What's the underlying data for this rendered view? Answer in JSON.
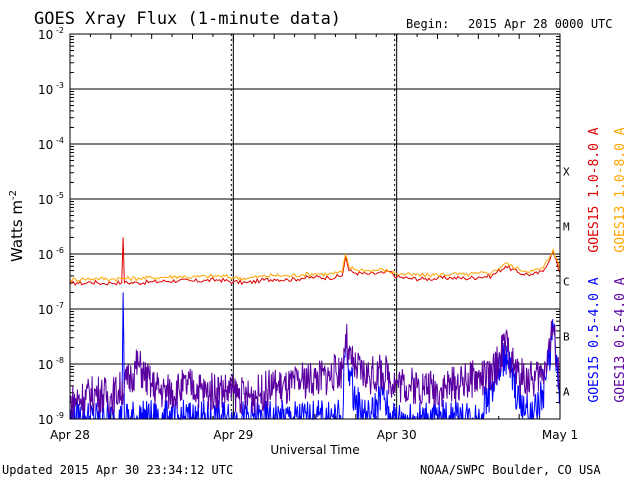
{
  "header": {
    "title": "GOES Xray Flux (1-minute data)",
    "begin_label": "Begin:",
    "begin_value": "2015 Apr 28 0000 UTC"
  },
  "footer": {
    "updated": "Updated 2015 Apr 30 23:34:12 UTC",
    "credit": "NOAA/SWPC Boulder, CO USA"
  },
  "chart_data": {
    "type": "line",
    "title": "GOES Xray Flux (1-minute data)",
    "xlabel": "Universal Time",
    "ylabel_text": "Watts m",
    "ylabel_exp": "-2",
    "yscale": "log",
    "ylim": [
      1e-09,
      0.01
    ],
    "xlim": [
      0,
      72
    ],
    "x_unit": "hours since 2015 Apr 28 0000 UTC",
    "x_ticks": [
      {
        "x": 0,
        "label": "Apr 28"
      },
      {
        "x": 24,
        "label": "Apr 29"
      },
      {
        "x": 48,
        "label": "Apr 30"
      },
      {
        "x": 72,
        "label": "May 1"
      }
    ],
    "y_ticks": [
      {
        "exp": -2,
        "label": "10",
        "sup": "-2"
      },
      {
        "exp": -3,
        "label": "10",
        "sup": "-3"
      },
      {
        "exp": -4,
        "label": "10",
        "sup": "-4"
      },
      {
        "exp": -5,
        "label": "10",
        "sup": "-5"
      },
      {
        "exp": -6,
        "label": "10",
        "sup": "-6"
      },
      {
        "exp": -7,
        "label": "10",
        "sup": "-7"
      },
      {
        "exp": -8,
        "label": "10",
        "sup": "-8"
      },
      {
        "exp": -9,
        "label": "10",
        "sup": "-9"
      }
    ],
    "flare_classes": [
      {
        "label": "X",
        "exp": -4
      },
      {
        "label": "M",
        "exp": -5
      },
      {
        "label": "C",
        "exp": -6
      },
      {
        "label": "B",
        "exp": -7
      },
      {
        "label": "A",
        "exp": -8
      }
    ],
    "grid": true,
    "legend_position": "right",
    "series": [
      {
        "name": "GOES15 1.0-8.0 A",
        "color": "#e00000",
        "x": [
          0,
          1,
          2,
          3,
          4,
          5,
          6,
          7.6,
          7.8,
          8,
          10,
          12,
          14,
          16,
          18,
          20,
          22,
          24,
          26,
          28,
          30,
          32,
          34,
          36,
          38,
          40,
          40.5,
          41,
          42,
          44,
          46,
          47,
          48,
          50,
          52,
          54,
          56,
          58,
          60,
          62,
          64,
          66,
          68,
          69.5,
          71,
          72
        ],
        "values": [
          2.8e-07,
          3e-07,
          2.9e-07,
          3.1e-07,
          3e-07,
          2.9e-07,
          3e-07,
          3e-07,
          2e-06,
          3e-07,
          3e-07,
          3.1e-07,
          3.2e-07,
          3.3e-07,
          3.2e-07,
          3.3e-07,
          3.4e-07,
          3.1e-07,
          3e-07,
          3.3e-07,
          3.5e-07,
          3.4e-07,
          3.6e-07,
          3.8e-07,
          3.7e-07,
          4e-07,
          9e-07,
          5e-07,
          4.5e-07,
          4.3e-07,
          4.5e-07,
          4.8e-07,
          3.8e-07,
          3.6e-07,
          3.5e-07,
          3.6e-07,
          3.7e-07,
          3.6e-07,
          3.8e-07,
          4e-07,
          6e-07,
          4.5e-07,
          4.2e-07,
          4.8e-07,
          1.1e-06,
          4.5e-07
        ]
      },
      {
        "name": "GOES13 1.0-8.0 A",
        "color": "#ffa500",
        "x": [
          0,
          2,
          4,
          6,
          8,
          10,
          12,
          14,
          16,
          18,
          20,
          22,
          24,
          26,
          28,
          30,
          32,
          34,
          36,
          38,
          40,
          40.5,
          41,
          42,
          44,
          46,
          48,
          50,
          52,
          54,
          56,
          58,
          60,
          62,
          64,
          66,
          68,
          69.5,
          71,
          72
        ],
        "values": [
          3.4e-07,
          3.5e-07,
          3.6e-07,
          3.5e-07,
          3.6e-07,
          3.6e-07,
          3.7e-07,
          3.8e-07,
          3.9e-07,
          3.8e-07,
          3.9e-07,
          4e-07,
          3.7e-07,
          3.6e-07,
          3.9e-07,
          4.1e-07,
          4e-07,
          4.2e-07,
          4.4e-07,
          4.3e-07,
          4.6e-07,
          1e-06,
          5.8e-07,
          5.2e-07,
          5e-07,
          5.2e-07,
          4.4e-07,
          4.2e-07,
          4.1e-07,
          4.2e-07,
          4.3e-07,
          4.2e-07,
          4.4e-07,
          4.6e-07,
          6.8e-07,
          5.2e-07,
          4.9e-07,
          5.5e-07,
          1.2e-06,
          5.2e-07
        ]
      },
      {
        "name": "GOES15 0.5-4.0 A",
        "color": "#0000ff",
        "x": [
          0,
          7.6,
          7.8,
          8,
          12,
          16,
          20,
          24,
          30,
          36,
          40,
          40.5,
          41,
          42,
          44,
          46,
          47,
          48,
          54,
          60,
          64,
          66,
          68,
          69.5,
          71,
          72
        ],
        "values": [
          1e-09,
          1e-09,
          2e-07,
          1e-09,
          1e-09,
          1e-09,
          1e-09,
          1e-09,
          1e-09,
          1e-09,
          1e-09,
          3e-08,
          8e-09,
          2e-09,
          1e-09,
          3e-09,
          1e-09,
          1e-09,
          1e-09,
          1e-09,
          1.5e-08,
          2e-09,
          1e-09,
          3e-09,
          4e-08,
          2e-09
        ]
      },
      {
        "name": "GOES13 0.5-4.0 A",
        "color": "#5a00a0",
        "x": [
          0,
          2,
          4,
          6,
          8,
          9,
          10,
          11,
          12,
          14,
          16,
          18,
          20,
          22,
          24,
          26,
          28,
          30,
          32,
          34,
          36,
          38,
          40,
          40.5,
          41,
          42,
          44,
          46,
          48,
          50,
          52,
          54,
          56,
          58,
          60,
          62,
          64,
          65,
          66,
          68,
          69.5,
          71,
          72
        ],
        "values": [
          2e-09,
          2.5e-09,
          3e-09,
          2.5e-09,
          4e-09,
          6e-09,
          1e-08,
          6e-09,
          4e-09,
          3e-09,
          3.5e-09,
          4e-09,
          3e-09,
          3.5e-09,
          3e-09,
          2.5e-09,
          3e-09,
          4e-09,
          3.5e-09,
          5e-09,
          5.5e-09,
          6e-09,
          8e-09,
          3.5e-08,
          1.2e-08,
          8e-09,
          6e-09,
          7e-09,
          4.5e-09,
          4e-09,
          4e-09,
          3.5e-09,
          4e-09,
          5e-09,
          5.5e-09,
          6e-09,
          2.5e-08,
          1e-08,
          6e-09,
          5e-09,
          7e-09,
          4.5e-08,
          4e-09
        ]
      }
    ]
  }
}
